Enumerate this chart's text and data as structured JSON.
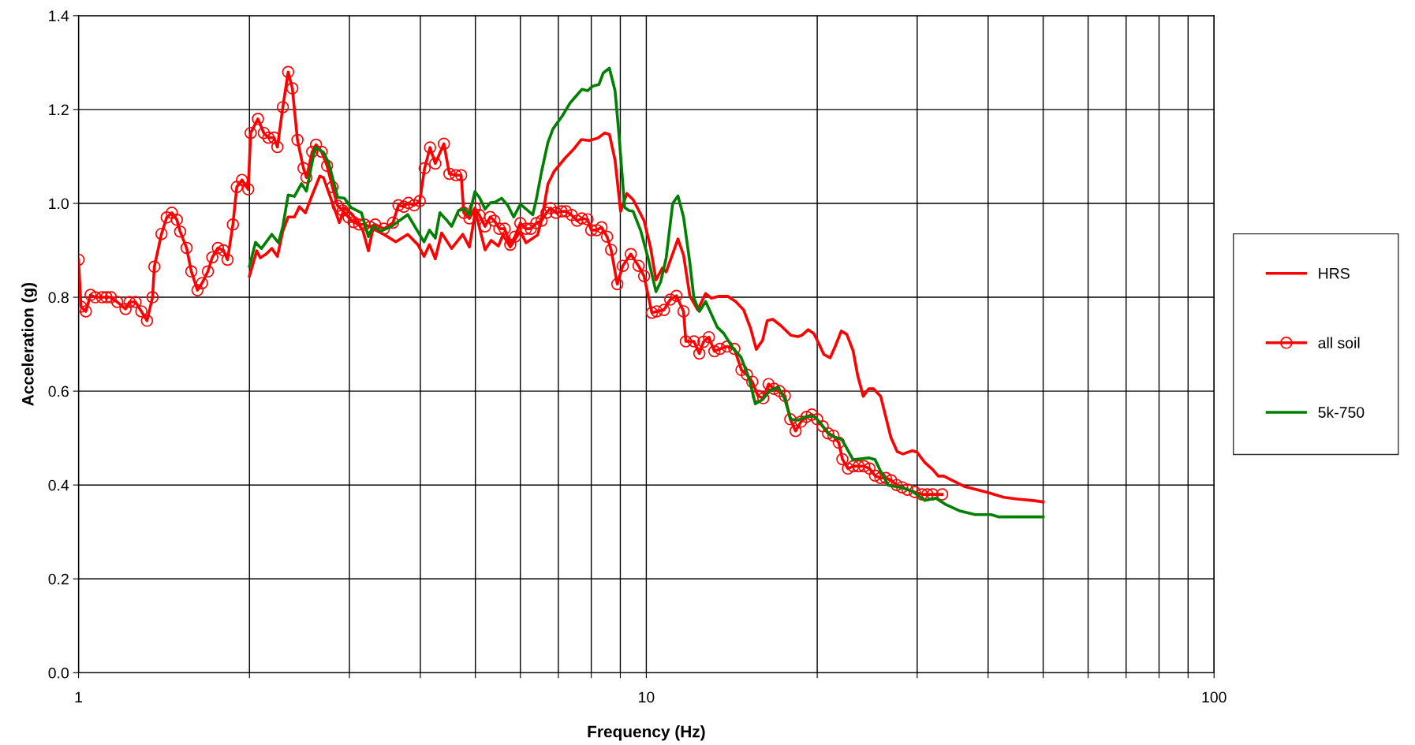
{
  "chart_data": {
    "type": "line",
    "xlabel": "Frequency (Hz)",
    "ylabel": "Acceleration (g)",
    "log": "x",
    "grid": true,
    "legend": "right",
    "line_style": "solid",
    "xlim": [
      1,
      100
    ],
    "xticks": [
      1,
      {
        "value": 2,
        "label": null
      },
      {
        "value": 3,
        "label": null
      },
      {
        "value": 4,
        "label": null
      },
      {
        "value": 5,
        "label": null
      },
      {
        "value": 6,
        "label": null
      },
      {
        "value": 7,
        "label": null
      },
      {
        "value": 8,
        "label": null
      },
      {
        "value": 9,
        "label": null
      },
      10,
      {
        "value": 20,
        "label": null
      },
      {
        "value": 30,
        "label": null
      },
      {
        "value": 40,
        "label": null
      },
      {
        "value": 50,
        "label": null
      },
      {
        "value": 60,
        "label": null
      },
      {
        "value": 70,
        "label": null
      },
      {
        "value": 80,
        "label": null
      },
      {
        "value": 90,
        "label": null
      },
      100
    ],
    "ylim": [
      0,
      1.4
    ],
    "yticks": [
      {
        "value": 0,
        "label": "0.0"
      },
      0.2,
      0.4,
      0.6,
      0.8,
      {
        "value": 1,
        "label": "1.0"
      },
      1.2,
      1.4
    ],
    "series": [
      {
        "name": "HRS",
        "color": "#ff0000",
        "marker": "none",
        "x": [
          2.0,
          2.06,
          2.09,
          2.14,
          2.19,
          2.24,
          2.29,
          2.34,
          2.4,
          2.45,
          2.51,
          2.57,
          2.66,
          2.7,
          2.8,
          2.88,
          2.94,
          3.04,
          3.17,
          3.24,
          3.3,
          3.46,
          3.62,
          3.8,
          3.96,
          4.06,
          4.15,
          4.25,
          4.36,
          4.54,
          4.75,
          4.88,
          5.0,
          5.2,
          5.33,
          5.49,
          5.59,
          5.76,
          6.0,
          6.14,
          6.44,
          6.6,
          6.71,
          6.88,
          7.2,
          7.43,
          7.68,
          7.93,
          8.21,
          8.45,
          8.61,
          8.81,
          9.01,
          9.24,
          9.48,
          9.91,
          10.17,
          10.4,
          10.67,
          10.84,
          11.37,
          11.63,
          11.93,
          12.32,
          12.72,
          13.01,
          13.43,
          13.91,
          14.37,
          14.84,
          15.27,
          15.62,
          16.02,
          16.33,
          16.7,
          17.24,
          17.97,
          18.49,
          18.79,
          19.28,
          19.72,
          20.1,
          20.55,
          21.08,
          21.56,
          22.05,
          22.55,
          23.13,
          23.58,
          24.11,
          24.65,
          25.13,
          25.87,
          26.97,
          27.67,
          28.3,
          29.4,
          29.97,
          30.94,
          31.95,
          32.67,
          33.41,
          36.3,
          39.97,
          42.6,
          44.98,
          47.95,
          50.0
        ],
        "values": [
          0.845,
          0.899,
          0.884,
          0.892,
          0.904,
          0.887,
          0.941,
          0.971,
          0.971,
          0.993,
          0.98,
          1.013,
          1.058,
          1.055,
          1.001,
          0.959,
          0.991,
          0.975,
          0.941,
          0.899,
          0.946,
          0.933,
          0.918,
          0.934,
          0.912,
          0.887,
          0.912,
          0.882,
          0.937,
          0.904,
          0.934,
          0.907,
          0.983,
          0.901,
          0.921,
          0.909,
          0.933,
          0.907,
          0.941,
          0.916,
          0.933,
          0.991,
          1.041,
          1.068,
          1.097,
          1.114,
          1.136,
          1.134,
          1.139,
          1.15,
          1.147,
          1.092,
          0.983,
          1.021,
          1.008,
          0.963,
          0.907,
          0.837,
          0.862,
          0.854,
          0.924,
          0.89,
          0.803,
          0.773,
          0.808,
          0.798,
          0.802,
          0.802,
          0.791,
          0.773,
          0.733,
          0.689,
          0.708,
          0.75,
          0.753,
          0.74,
          0.719,
          0.716,
          0.719,
          0.731,
          0.723,
          0.703,
          0.678,
          0.671,
          0.698,
          0.728,
          0.721,
          0.686,
          0.632,
          0.589,
          0.605,
          0.605,
          0.589,
          0.501,
          0.471,
          0.466,
          0.473,
          0.47,
          0.448,
          0.433,
          0.419,
          0.419,
          0.397,
          0.384,
          0.374,
          0.37,
          0.367,
          0.364
        ]
      },
      {
        "name": "all soil",
        "color": "#ff0000",
        "marker": "circle",
        "x": [
          1.0,
          1.01,
          1.03,
          1.05,
          1.07,
          1.1,
          1.12,
          1.14,
          1.17,
          1.21,
          1.23,
          1.26,
          1.29,
          1.32,
          1.35,
          1.36,
          1.4,
          1.43,
          1.46,
          1.49,
          1.51,
          1.55,
          1.58,
          1.62,
          1.65,
          1.69,
          1.72,
          1.76,
          1.8,
          1.83,
          1.87,
          1.9,
          1.94,
          1.99,
          2.01,
          2.07,
          2.12,
          2.16,
          2.21,
          2.24,
          2.29,
          2.34,
          2.38,
          2.43,
          2.49,
          2.52,
          2.58,
          2.62,
          2.68,
          2.74,
          2.8,
          2.86,
          2.92,
          2.99,
          3.05,
          3.12,
          3.19,
          3.26,
          3.33,
          3.45,
          3.58,
          3.66,
          3.74,
          3.81,
          3.9,
          3.99,
          4.07,
          4.16,
          4.25,
          4.4,
          4.5,
          4.62,
          4.72,
          4.77,
          4.88,
          4.99,
          5.08,
          5.2,
          5.31,
          5.4,
          5.51,
          5.63,
          5.76,
          5.87,
          6.0,
          6.14,
          6.26,
          6.4,
          6.54,
          6.67,
          6.78,
          6.93,
          7.09,
          7.22,
          7.39,
          7.55,
          7.7,
          7.88,
          8.0,
          8.18,
          8.34,
          8.53,
          8.67,
          8.89,
          9.09,
          9.39,
          9.69,
          9.91,
          10.23,
          10.43,
          10.74,
          11.02,
          11.3,
          11.63,
          11.74,
          12.13,
          12.4,
          12.61,
          12.89,
          13.18,
          13.48,
          13.88,
          14.29,
          14.71,
          15.04,
          15.37,
          15.72,
          16.07,
          16.42,
          16.79,
          17.16,
          17.54,
          17.93,
          18.32,
          18.73,
          19.15,
          19.57,
          20.0,
          20.45,
          20.9,
          21.36,
          21.83,
          22.15,
          22.65,
          23.15,
          23.66,
          24.19,
          24.73,
          25.28,
          25.84,
          26.42,
          27.0,
          27.6,
          28.22,
          28.84,
          29.7,
          30.57,
          31.26,
          31.95,
          33.2
        ],
        "values": [
          0.88,
          0.78,
          0.77,
          0.805,
          0.8,
          0.8,
          0.8,
          0.8,
          0.79,
          0.775,
          0.79,
          0.79,
          0.77,
          0.75,
          0.8,
          0.865,
          0.935,
          0.97,
          0.98,
          0.965,
          0.94,
          0.905,
          0.855,
          0.815,
          0.83,
          0.855,
          0.885,
          0.905,
          0.9,
          0.88,
          0.955,
          1.035,
          1.05,
          1.03,
          1.15,
          1.18,
          1.15,
          1.14,
          1.14,
          1.12,
          1.205,
          1.28,
          1.245,
          1.135,
          1.075,
          1.055,
          1.11,
          1.125,
          1.11,
          1.08,
          1.035,
          0.995,
          0.985,
          0.97,
          0.96,
          0.955,
          0.955,
          0.95,
          0.955,
          0.946,
          0.959,
          0.996,
          0.993,
          1.001,
          0.996,
          1.005,
          1.075,
          1.119,
          1.085,
          1.127,
          1.063,
          1.06,
          1.06,
          0.98,
          0.968,
          0.99,
          0.975,
          0.951,
          0.971,
          0.963,
          0.946,
          0.946,
          0.912,
          0.929,
          0.958,
          0.946,
          0.946,
          0.958,
          0.963,
          0.98,
          0.99,
          0.98,
          0.983,
          0.983,
          0.975,
          0.963,
          0.968,
          0.966,
          0.943,
          0.943,
          0.949,
          0.929,
          0.901,
          0.828,
          0.867,
          0.892,
          0.867,
          0.845,
          0.767,
          0.77,
          0.773,
          0.795,
          0.803,
          0.77,
          0.706,
          0.706,
          0.68,
          0.705,
          0.715,
          0.685,
          0.69,
          0.695,
          0.69,
          0.645,
          0.635,
          0.62,
          0.59,
          0.585,
          0.615,
          0.605,
          0.6,
          0.59,
          0.54,
          0.515,
          0.535,
          0.545,
          0.55,
          0.54,
          0.525,
          0.51,
          0.505,
          0.49,
          0.455,
          0.435,
          0.44,
          0.44,
          0.44,
          0.435,
          0.42,
          0.415,
          0.415,
          0.41,
          0.4,
          0.395,
          0.39,
          0.385,
          0.38,
          0.38,
          0.38,
          0.38
        ]
      },
      {
        "name": "5k-750",
        "color": "#008000",
        "marker": "none",
        "x": [
          2.0,
          2.05,
          2.1,
          2.19,
          2.25,
          2.29,
          2.34,
          2.4,
          2.47,
          2.52,
          2.61,
          2.7,
          2.76,
          2.86,
          2.94,
          3.02,
          3.15,
          3.24,
          3.3,
          3.41,
          3.56,
          3.8,
          4.06,
          4.15,
          4.25,
          4.33,
          4.46,
          4.54,
          4.67,
          4.79,
          4.88,
          4.99,
          5.08,
          5.2,
          5.31,
          5.42,
          5.56,
          5.7,
          5.84,
          6.0,
          6.14,
          6.31,
          6.4,
          6.54,
          6.71,
          6.85,
          7.11,
          7.34,
          7.55,
          7.7,
          7.88,
          8.05,
          8.25,
          8.4,
          8.61,
          8.81,
          8.95,
          9.16,
          9.32,
          9.48,
          9.78,
          10.07,
          10.4,
          10.6,
          10.84,
          11.13,
          11.37,
          11.63,
          11.93,
          12.13,
          12.4,
          12.72,
          13.34,
          13.69,
          14.22,
          14.69,
          15.17,
          15.56,
          16.02,
          16.54,
          17.08,
          17.51,
          17.97,
          18.49,
          19.15,
          19.78,
          20.43,
          21.09,
          22.13,
          23.13,
          23.96,
          24.65,
          25.29,
          25.87,
          26.71,
          28.1,
          29.4,
          30.94,
          32.36,
          33.73,
          35.62,
          37.97,
          40.47,
          41.79,
          50.0
        ],
        "values": [
          0.866,
          0.917,
          0.904,
          0.934,
          0.916,
          0.951,
          1.018,
          1.015,
          1.042,
          1.026,
          1.119,
          1.109,
          1.085,
          1.013,
          1.011,
          0.991,
          0.98,
          0.929,
          0.951,
          0.941,
          0.951,
          0.976,
          0.918,
          0.943,
          0.926,
          0.98,
          0.963,
          0.951,
          0.985,
          0.988,
          0.975,
          1.025,
          1.013,
          0.988,
          1.001,
          1.003,
          1.011,
          0.996,
          0.971,
          0.998,
          0.988,
          0.976,
          1.008,
          1.068,
          1.13,
          1.159,
          1.186,
          1.214,
          1.231,
          1.243,
          1.24,
          1.25,
          1.253,
          1.278,
          1.288,
          1.24,
          1.147,
          0.991,
          0.985,
          0.983,
          0.941,
          0.884,
          0.812,
          0.833,
          0.884,
          1.0,
          1.016,
          0.971,
          0.874,
          0.798,
          0.77,
          0.791,
          0.736,
          0.723,
          0.691,
          0.672,
          0.627,
          0.573,
          0.582,
          0.602,
          0.608,
          0.585,
          0.54,
          0.538,
          0.546,
          0.546,
          0.526,
          0.506,
          0.496,
          0.454,
          0.456,
          0.458,
          0.454,
          0.429,
          0.399,
          0.395,
          0.387,
          0.367,
          0.372,
          0.358,
          0.345,
          0.337,
          0.337,
          0.332,
          0.332
        ]
      }
    ]
  }
}
